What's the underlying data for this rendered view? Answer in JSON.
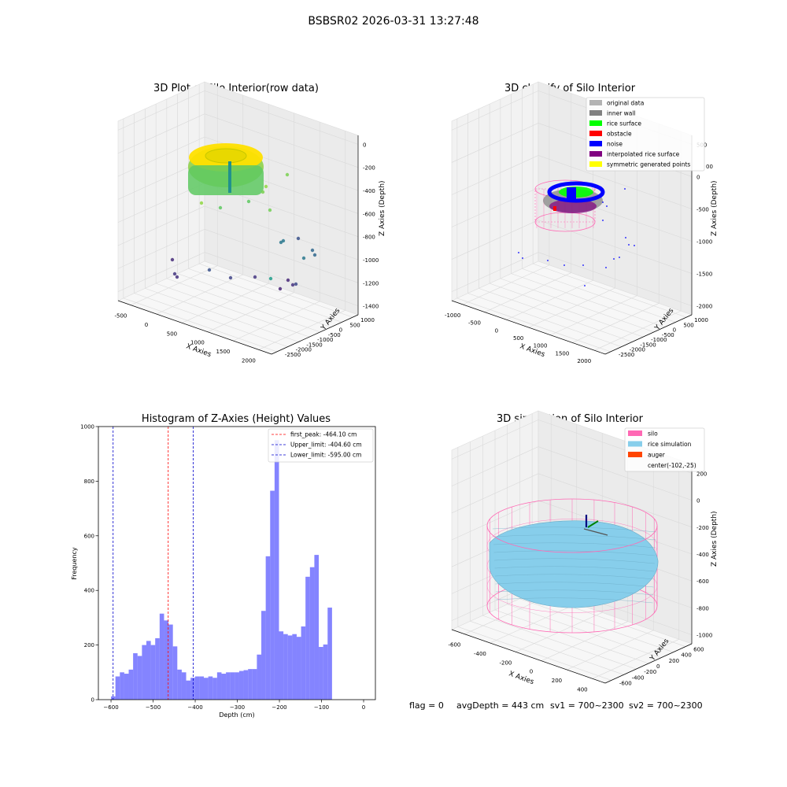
{
  "suptitle": "BSBSR02 2026-03-31 13:27:48",
  "status_line": {
    "flag": "flag = 0",
    "avg_depth": "avgDepth = 443 cm",
    "sv1": "sv1 = 700~2300",
    "sv2": "sv2 = 700~2300"
  },
  "colors": {
    "hist_bar": "#5050ff",
    "first_peak": "#ff0000",
    "limit_line": "#0000cc",
    "silo": "#ff69b4",
    "rice_sim": "#87ceeb",
    "auger": "#ff4500",
    "rice_surface": "#00ff00",
    "obstacle": "#ff0000",
    "noise": "#0000ff",
    "interpolated": "#800080",
    "symmetric": "#ffff00",
    "original": "#b3b3b3",
    "inner_wall": "#808080"
  },
  "chart_data": [
    {
      "type": "scatter3d",
      "title": "3D Plot of Silo Interior(row data)",
      "xlabel": "X Axies",
      "ylabel": "Y Axies",
      "zlabel": "Z Axies (Depth)",
      "x_ticks": [
        "-500",
        "0",
        "500",
        "1000",
        "1500",
        "2000"
      ],
      "y_ticks": [
        "1000",
        "500",
        "0",
        "-500",
        "-1000",
        "-1500",
        "-2000",
        "-2500"
      ],
      "z_ticks": [
        "0",
        "-200",
        "-400",
        "-600",
        "-800",
        "-1000",
        "-1200",
        "-1400"
      ],
      "xlim": [
        -600,
        2000
      ],
      "ylim": [
        -2600,
        1100
      ],
      "zlim": [
        -1450,
        50
      ]
    },
    {
      "type": "scatter3d",
      "title": "3D classify of Silo Interior",
      "xlabel": "X Axies",
      "ylabel": "Y Axies",
      "zlabel": "Z Axies (Depth)",
      "x_ticks": [
        "-1000",
        "-500",
        "0",
        "500",
        "1000",
        "1500",
        "2000"
      ],
      "y_ticks": [
        "1000",
        "500",
        "0",
        "-500",
        "-1000",
        "-1500",
        "-2000",
        "-2500"
      ],
      "z_ticks": [
        "500",
        "0",
        "-500",
        "-1000",
        "-1500",
        "-2000"
      ],
      "legend": [
        "original data",
        "inner wall",
        "rice surface",
        "obstacle",
        "noise",
        "interpolated rice surface",
        "symmetric generated points"
      ],
      "legend_colors": [
        "#b3b3b3",
        "#808080",
        "#00ff00",
        "#ff0000",
        "#0000ff",
        "#800080",
        "#ffff00"
      ],
      "legend_loc": "upper right",
      "z_top_tick_hidden_fragment": "00"
    },
    {
      "type": "bar",
      "title": "Histogram of Z-Axies (Height) Values",
      "xlabel": "Depth (cm)",
      "ylabel": "Frequency",
      "x_ticks": [
        "−600",
        "−500",
        "−400",
        "−300",
        "−200",
        "−100",
        "0"
      ],
      "y_ticks": [
        "0",
        "200",
        "400",
        "600",
        "800",
        "1000"
      ],
      "xlim": [
        -630,
        28
      ],
      "ylim": [
        0,
        1000
      ],
      "bin_start": -600,
      "bin_width": 10.5,
      "values": [
        12,
        85,
        100,
        95,
        110,
        170,
        160,
        200,
        215,
        200,
        225,
        315,
        290,
        275,
        195,
        110,
        100,
        70,
        80,
        85,
        85,
        80,
        85,
        80,
        100,
        95,
        100,
        100,
        100,
        105,
        108,
        112,
        112,
        165,
        325,
        525,
        765,
        950,
        250,
        240,
        235,
        240,
        230,
        268,
        450,
        485,
        530,
        193,
        202,
        337
      ],
      "lines": [
        {
          "label": "first_peak: -464.10 cm",
          "x": -464.1,
          "color": "#ff0000"
        },
        {
          "label": "Upper_limit: -404.60 cm",
          "x": -404.6,
          "color": "#0000cc"
        },
        {
          "label": "Lower_limit: -595.00 cm",
          "x": -595.0,
          "color": "#0000cc"
        }
      ],
      "legend_loc": "upper right"
    },
    {
      "type": "surface3d",
      "title": "3D simulation of Silo Interior",
      "xlabel": "X Axies",
      "ylabel": "Y Axies",
      "zlabel": "Z Axies (Depth)",
      "x_ticks": [
        "-600",
        "-400",
        "-200",
        "0",
        "200",
        "400"
      ],
      "y_ticks": [
        "600",
        "400",
        "200",
        "0",
        "-200",
        "-400",
        "-600"
      ],
      "z_ticks": [
        "200",
        "0",
        "-200",
        "-400",
        "-600",
        "-800",
        "-1000"
      ],
      "legend": [
        "silo",
        "rice simulation",
        "auger",
        "center(-102,-25)"
      ],
      "legend_colors": [
        "#ff69b4",
        "#87ceeb",
        "#ff4500",
        ""
      ],
      "legend_loc": "upper right"
    }
  ]
}
